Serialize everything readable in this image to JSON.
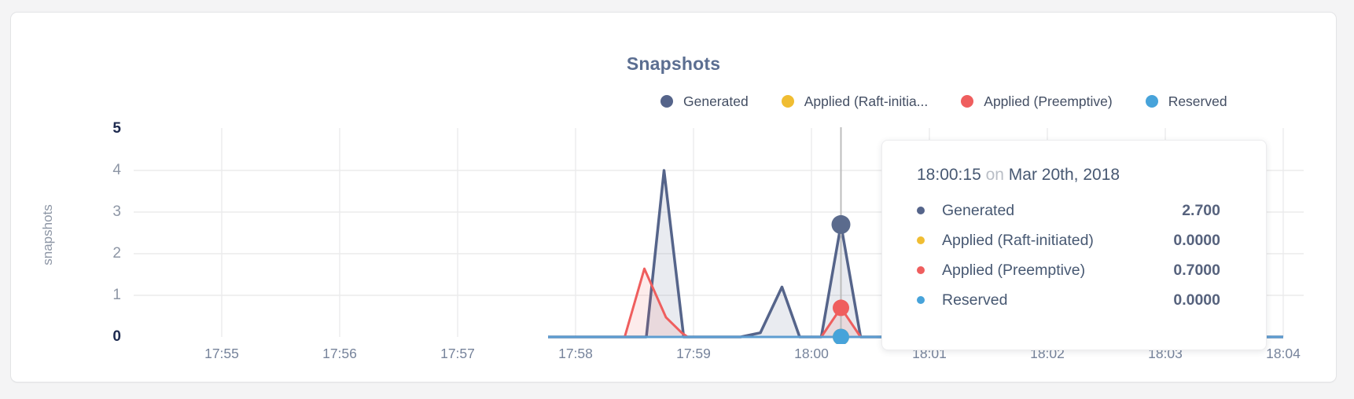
{
  "tooltip": {
    "time": "18:00:15",
    "conjunction": "on",
    "date": "Mar 20th, 2018",
    "rows": [
      {
        "label": "Generated",
        "value": "2.700",
        "color": "#55648a"
      },
      {
        "label": "Applied (Raft-initiated)",
        "value": "0.0000",
        "color": "#f0bd32"
      },
      {
        "label": "Applied (Preemptive)",
        "value": "0.7000",
        "color": "#ef5e5e"
      },
      {
        "label": "Reserved",
        "value": "0.0000",
        "color": "#47a3da"
      }
    ]
  },
  "chart_data": {
    "type": "area",
    "title": "Snapshots",
    "ylabel": "snapshots",
    "ylim": [
      0,
      5
    ],
    "grid": true,
    "legend_position": "top-right",
    "x_start": "17:55:00",
    "x_end": "18:04:00",
    "yticks": [
      {
        "value": 5,
        "label": "5",
        "emphasis": true
      },
      {
        "value": 4,
        "label": "4",
        "emphasis": false
      },
      {
        "value": 3,
        "label": "3",
        "emphasis": false
      },
      {
        "value": 2,
        "label": "2",
        "emphasis": false
      },
      {
        "value": 1,
        "label": "1",
        "emphasis": false
      },
      {
        "value": 0,
        "label": "0",
        "emphasis": true
      }
    ],
    "xticks": [
      "17:55",
      "17:56",
      "17:57",
      "17:58",
      "17:59",
      "18:00",
      "18:01",
      "18:02",
      "18:03",
      "18:04"
    ],
    "legend_items": [
      {
        "label": "Generated",
        "color": "#55648a"
      },
      {
        "label": "Applied (Raft-initia...",
        "color": "#f0bd32"
      },
      {
        "label": "Applied (Preemptive)",
        "color": "#ef5e5e"
      },
      {
        "label": "Reserved",
        "color": "#47a3da"
      }
    ],
    "series": [
      {
        "name": "Generated",
        "color": "#55648a",
        "stroke_width": 3.5,
        "fill_opacity": 0.13,
        "points": [
          [
            "17:57:46",
            0
          ],
          [
            "17:58:36",
            0
          ],
          [
            "17:58:45",
            4.0
          ],
          [
            "17:58:55",
            0
          ],
          [
            "17:59:24",
            0
          ],
          [
            "17:59:34",
            0.1
          ],
          [
            "17:59:45",
            1.2
          ],
          [
            "17:59:54",
            0
          ],
          [
            "18:00:05",
            0
          ],
          [
            "18:00:15",
            2.7
          ],
          [
            "18:00:25",
            0
          ],
          [
            "18:04:00",
            0
          ]
        ]
      },
      {
        "name": "Applied (Raft-initiated)",
        "color": "#f0bd32",
        "stroke_width": 2.5,
        "fill_opacity": 0,
        "points": [
          [
            "17:57:46",
            0
          ],
          [
            "18:04:00",
            0
          ]
        ]
      },
      {
        "name": "Applied (Preemptive)",
        "color": "#ef5e5e",
        "stroke_width": 3,
        "fill_opacity": 0.12,
        "points": [
          [
            "17:57:46",
            0
          ],
          [
            "17:58:25",
            0
          ],
          [
            "17:58:35",
            1.64
          ],
          [
            "17:58:46",
            0.47
          ],
          [
            "17:58:54",
            0.1
          ],
          [
            "17:58:57",
            0
          ],
          [
            "18:00:05",
            0
          ],
          [
            "18:00:15",
            0.7
          ],
          [
            "18:00:25",
            0
          ],
          [
            "18:04:00",
            0
          ]
        ]
      },
      {
        "name": "Reserved",
        "color": "#5d9dd1",
        "stroke_width": 3,
        "fill_opacity": 0,
        "points": [
          [
            "17:57:46",
            0
          ],
          [
            "18:04:00",
            0
          ]
        ]
      }
    ],
    "hover": {
      "time": "18:00:15",
      "line_color": "#bdbdbd",
      "values": [
        {
          "series": "Generated",
          "value": 2.7,
          "dot_color": "#5b6b8d",
          "radius": 12
        },
        {
          "series": "Applied (Raft-initiated)",
          "value": 0,
          "dot_color": "#f0bd32",
          "radius": 10.5
        },
        {
          "series": "Applied (Preemptive)",
          "value": 0.7,
          "dot_color": "#ef5e5e",
          "radius": 10.5
        },
        {
          "series": "Reserved",
          "value": 0,
          "dot_color": "#47a3da",
          "radius": 10.5
        }
      ]
    },
    "colors": {
      "grid": "#ebebec",
      "axis_text": "#8d96a5",
      "axis_text_strong": "#1d2a4f",
      "title": "#5b6e91"
    }
  }
}
